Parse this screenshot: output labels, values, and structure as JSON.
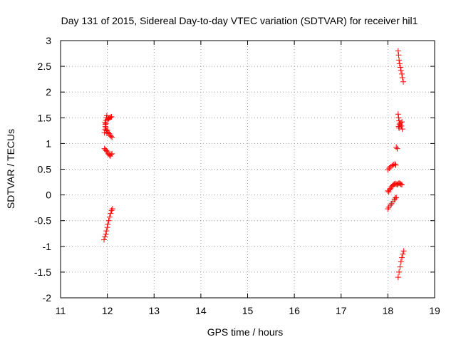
{
  "chart_data": {
    "type": "scatter",
    "title": "Day 131 of 2015, Sidereal Day-to-day VTEC variation (SDTVAR) for receiver hil1",
    "xlabel": "GPS time / hours",
    "ylabel": "SDTVAR / TECUs",
    "xlim": [
      11,
      19
    ],
    "ylim": [
      -2,
      3
    ],
    "xticks": [
      "11",
      "12",
      "13",
      "14",
      "15",
      "16",
      "17",
      "18",
      "19"
    ],
    "yticks": [
      "-2",
      "-1.5",
      "-1",
      "-0.5",
      "0",
      "0.5",
      "1",
      "1.5",
      "2",
      "2.5",
      "3"
    ],
    "grid": true,
    "legend": "none",
    "marker": "plus",
    "color": "#ff0000",
    "series": [
      {
        "points": [
          [
            11.94,
            1.21
          ],
          [
            11.95,
            1.27
          ],
          [
            11.96,
            1.33
          ],
          [
            11.97,
            1.39
          ],
          [
            11.97,
            1.45
          ],
          [
            11.98,
            1.5
          ],
          [
            11.99,
            1.54
          ],
          [
            11.95,
            1.41
          ],
          [
            11.96,
            1.37
          ],
          [
            11.97,
            1.3
          ],
          [
            11.98,
            1.25
          ],
          [
            11.99,
            1.2
          ],
          [
            12.01,
            1.47
          ],
          [
            12.02,
            1.48
          ],
          [
            12.03,
            1.49
          ],
          [
            12.05,
            1.5
          ],
          [
            12.07,
            1.51
          ],
          [
            12.09,
            1.52
          ],
          [
            12.0,
            1.26
          ],
          [
            12.02,
            1.22
          ],
          [
            12.04,
            1.19
          ],
          [
            12.06,
            1.16
          ],
          [
            12.08,
            1.14
          ],
          [
            12.1,
            1.12
          ],
          [
            11.94,
            0.9
          ],
          [
            11.96,
            0.88
          ],
          [
            11.98,
            0.86
          ],
          [
            12.0,
            0.84
          ],
          [
            12.02,
            0.8
          ],
          [
            12.04,
            0.78
          ],
          [
            12.06,
            0.76
          ],
          [
            12.08,
            0.79
          ],
          [
            12.1,
            0.8
          ],
          [
            11.93,
            -0.87
          ],
          [
            11.95,
            -0.81
          ],
          [
            11.97,
            -0.76
          ],
          [
            11.98,
            -0.7
          ],
          [
            12.0,
            -0.63
          ],
          [
            12.01,
            -0.57
          ],
          [
            12.03,
            -0.5
          ],
          [
            12.05,
            -0.43
          ],
          [
            12.07,
            -0.36
          ],
          [
            12.09,
            -0.3
          ],
          [
            12.11,
            -0.27
          ]
        ]
      },
      {
        "points": [
          [
            18.22,
            2.8
          ],
          [
            18.23,
            2.72
          ],
          [
            18.24,
            2.62
          ],
          [
            18.25,
            2.55
          ],
          [
            18.27,
            2.48
          ],
          [
            18.28,
            2.42
          ],
          [
            18.3,
            2.35
          ],
          [
            18.31,
            2.28
          ],
          [
            18.33,
            2.2
          ],
          [
            18.22,
            1.57
          ],
          [
            18.23,
            1.5
          ],
          [
            18.24,
            1.44
          ],
          [
            18.25,
            1.38
          ],
          [
            18.23,
            1.33
          ],
          [
            18.26,
            1.36
          ],
          [
            18.29,
            1.34
          ],
          [
            18.31,
            1.28
          ],
          [
            18.3,
            1.42
          ],
          [
            18.27,
            1.4
          ],
          [
            18.24,
            1.3
          ],
          [
            18.18,
            0.93
          ],
          [
            18.2,
            0.9
          ],
          [
            18.0,
            0.49
          ],
          [
            18.03,
            0.52
          ],
          [
            18.06,
            0.55
          ],
          [
            18.09,
            0.57
          ],
          [
            18.12,
            0.59
          ],
          [
            18.15,
            0.6
          ],
          [
            18.17,
            0.58
          ],
          [
            18.0,
            0.08
          ],
          [
            18.02,
            0.06
          ],
          [
            18.04,
            0.1
          ],
          [
            18.06,
            0.13
          ],
          [
            18.08,
            0.16
          ],
          [
            18.1,
            0.18
          ],
          [
            18.12,
            0.2
          ],
          [
            18.14,
            0.21
          ],
          [
            18.16,
            0.22
          ],
          [
            18.18,
            0.21
          ],
          [
            18.2,
            0.2
          ],
          [
            18.22,
            0.22
          ],
          [
            18.24,
            0.23
          ],
          [
            18.26,
            0.22
          ],
          [
            18.28,
            0.21
          ],
          [
            18.3,
            0.2
          ],
          [
            18.0,
            -0.27
          ],
          [
            18.02,
            -0.24
          ],
          [
            18.05,
            -0.2
          ],
          [
            18.08,
            -0.17
          ],
          [
            18.11,
            -0.13
          ],
          [
            18.14,
            -0.09
          ],
          [
            18.16,
            -0.06
          ],
          [
            18.18,
            -0.05
          ],
          [
            18.22,
            -1.6
          ],
          [
            18.24,
            -1.5
          ],
          [
            18.26,
            -1.4
          ],
          [
            18.28,
            -1.3
          ],
          [
            18.3,
            -1.22
          ],
          [
            18.32,
            -1.15
          ],
          [
            18.34,
            -1.09
          ]
        ]
      }
    ]
  }
}
